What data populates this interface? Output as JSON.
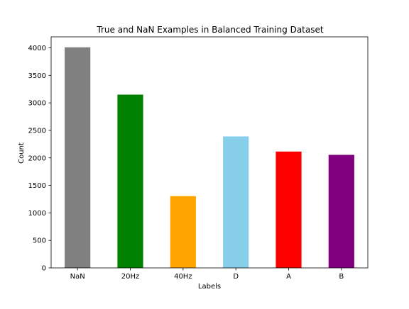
{
  "chart_data": {
    "type": "bar",
    "title": "True and NaN Examples in Balanced Training Dataset",
    "xlabel": "Labels",
    "ylabel": "Count",
    "categories": [
      "NaN",
      "20Hz",
      "40Hz",
      "D",
      "A",
      "B"
    ],
    "values": [
      4010,
      3150,
      1305,
      2390,
      2115,
      2055
    ],
    "colors": [
      "#808080",
      "#008000",
      "#ffa500",
      "#87ceeb",
      "#ff0000",
      "#800080"
    ],
    "ylim": [
      0,
      4200
    ],
    "yticks": [
      0,
      500,
      1000,
      1500,
      2000,
      2500,
      3000,
      3500,
      4000
    ],
    "grid": false,
    "legend": "none"
  }
}
